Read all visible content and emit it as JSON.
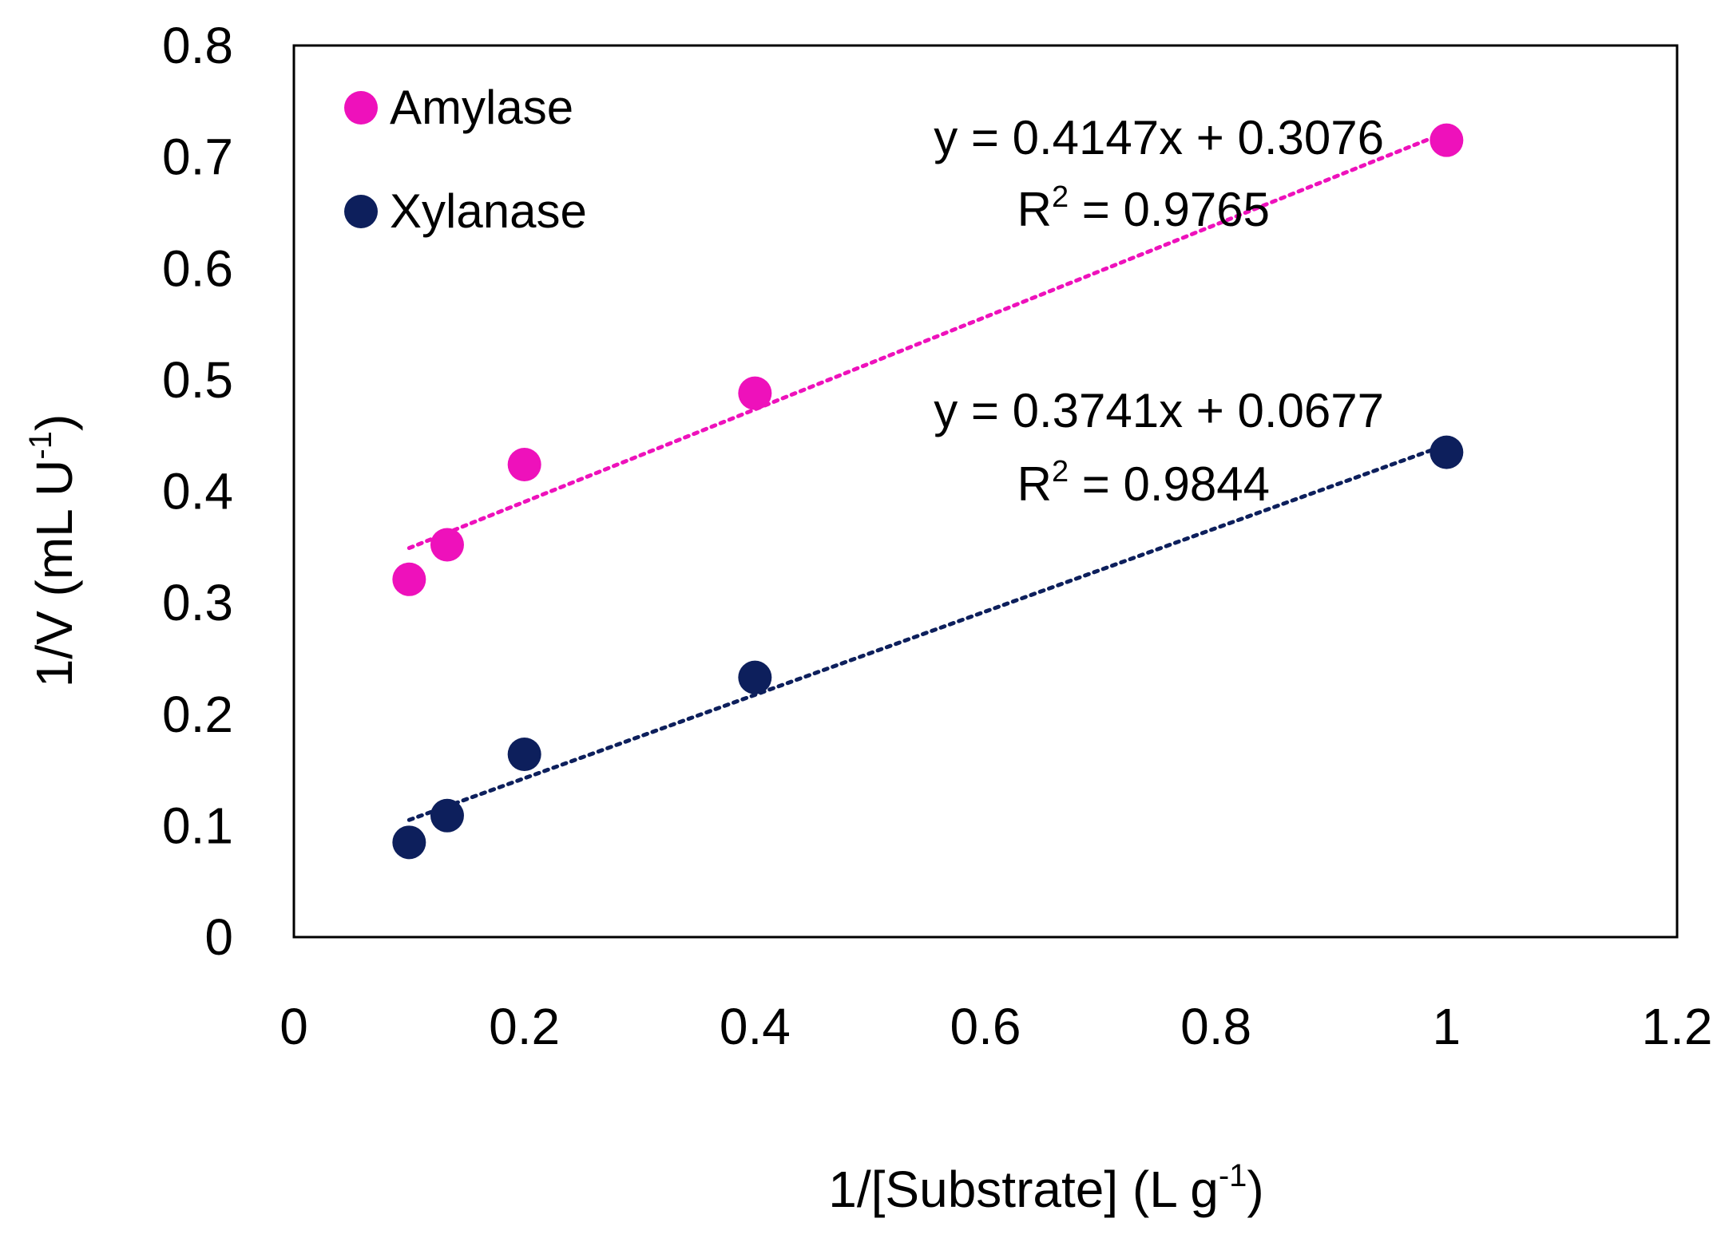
{
  "chart_data": {
    "type": "scatter",
    "title": "",
    "xlabel": "1/[Substrate] (L g",
    "xlabel_sup": "-1",
    "xlabel_end": ")",
    "ylabel": "1/V (mL U",
    "ylabel_sup": "-1",
    "ylabel_end": ")",
    "xlim": [
      0,
      1.2
    ],
    "ylim": [
      0,
      0.8
    ],
    "x_ticks": [
      "0",
      "0.2",
      "0.4",
      "0.6",
      "0.8",
      "1",
      "1.2"
    ],
    "y_ticks": [
      "0",
      "0.1",
      "0.2",
      "0.3",
      "0.4",
      "0.5",
      "0.6",
      "0.7",
      "0.8"
    ],
    "legend_position": "top-left",
    "series": [
      {
        "name": "Amylase",
        "color": "#ee11bb",
        "x": [
          0.1,
          0.133,
          0.2,
          0.4,
          1.0
        ],
        "y": [
          0.321,
          0.352,
          0.424,
          0.488,
          0.715
        ],
        "trendline": {
          "slope": 0.4147,
          "intercept": 0.3076,
          "x_range": [
            0.1,
            1.0
          ]
        },
        "equation": "y = 0.4147x + 0.3076",
        "r2_prefix": "R",
        "r2_sup": "2",
        "r2_value": " = 0.9765"
      },
      {
        "name": "Xylanase",
        "color": "#0d1f5c",
        "x": [
          0.1,
          0.133,
          0.2,
          0.4,
          1.0
        ],
        "y": [
          0.085,
          0.109,
          0.164,
          0.233,
          0.435
        ],
        "trendline": {
          "slope": 0.3741,
          "intercept": 0.0677,
          "x_range": [
            0.1,
            1.0
          ]
        },
        "equation": "y = 0.3741x + 0.0677",
        "r2_prefix": "R",
        "r2_sup": "2",
        "r2_value": " = 0.9844"
      }
    ]
  }
}
